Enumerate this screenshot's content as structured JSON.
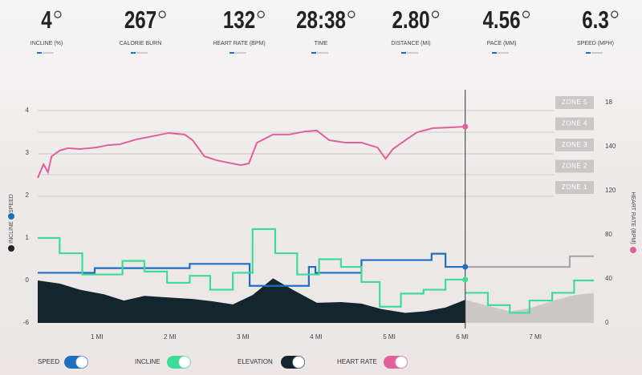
{
  "stats": [
    {
      "value": "4",
      "label": "INCLINE (%)"
    },
    {
      "value": "267",
      "label": "CALORIE BURN"
    },
    {
      "value": "132",
      "label": "HEART RATE (BPM)"
    },
    {
      "value": "28:38",
      "label": "TIME"
    },
    {
      "value": "2.80",
      "label": "DISTANCE (MI)"
    },
    {
      "value": "4.56",
      "label": "PACE (MM)"
    },
    {
      "value": "6.3",
      "label": "SPEED (MPH)"
    }
  ],
  "chart_data": {
    "type": "line",
    "ylabel_incline": "INCLINE",
    "ylabel_speed": "SPEED",
    "y2label": "HEART RATE (BPM)",
    "y2_top_label": "18",
    "zones": [
      "ZONE 5",
      "ZONE 4",
      "ZONE 3",
      "ZONE 2",
      "ZONE 1"
    ],
    "xlim": [
      0.19,
      7.8
    ],
    "xticks": [
      {
        "value": 1,
        "label": "1 MI"
      },
      {
        "value": 2,
        "label": "2 MI"
      },
      {
        "value": 3,
        "label": "3 MI"
      },
      {
        "value": 4,
        "label": "4 MI"
      },
      {
        "value": 5,
        "label": "5 MI"
      },
      {
        "value": 6,
        "label": "6 MI"
      },
      {
        "value": 7,
        "label": "7 MI"
      }
    ],
    "yticks": [
      4,
      3,
      2,
      1,
      0,
      -6
    ],
    "y2ticks": [
      140,
      120,
      80,
      40,
      0
    ],
    "series": [
      {
        "name": "SPEED",
        "color": "#1f6fbf",
        "planned_color": "#a8a8a8",
        "style": "step",
        "axis": "y",
        "x": [
          0.19,
          0.97,
          2.27,
          3.09,
          3.9,
          3.99,
          4.62,
          5.58,
          5.77,
          6.04
        ],
        "values": [
          0.18,
          0.29,
          0.39,
          -0.76,
          0.32,
          0.18,
          0.48,
          0.63,
          0.32,
          0.32
        ],
        "planned_x": [
          6.04,
          7.47,
          7.8
        ],
        "planned_values": [
          0.32,
          0.57,
          0.57
        ]
      },
      {
        "name": "INCLINE",
        "color": "#3ddc97",
        "planned_color": "#3ddc97",
        "style": "step",
        "axis": "y",
        "x": [
          0.19,
          0.49,
          0.8,
          1.35,
          1.65,
          1.96,
          2.27,
          2.55,
          2.86,
          3.13,
          3.44,
          3.74,
          4.04,
          4.34,
          4.62,
          4.87,
          5.16,
          5.47,
          5.77,
          6.04
        ],
        "values": [
          1.0,
          0.64,
          0.14,
          0.46,
          0.21,
          -0.33,
          0.11,
          -1.31,
          0.18,
          1.21,
          0.64,
          0.14,
          0.5,
          0.32,
          -0.22,
          -3.71,
          -1.85,
          -1.31,
          0.02,
          0.02
        ],
        "planned_x": [
          6.04,
          6.35,
          6.65,
          6.92,
          7.23,
          7.53,
          7.8
        ],
        "planned_values": [
          -1.75,
          -3.49,
          -4.58,
          -2.84,
          -1.75,
          0,
          0
        ]
      },
      {
        "name": "ELEVATION",
        "color": "#13262d",
        "planned_color": "#cdc8c8",
        "style": "area",
        "axis": "y",
        "x": [
          0.19,
          0.49,
          0.77,
          1.1,
          1.37,
          1.65,
          1.98,
          2.31,
          2.58,
          2.86,
          3.13,
          3.41,
          3.68,
          4.01,
          4.34,
          4.62,
          4.89,
          5.22,
          5.49,
          5.77,
          6.04
        ],
        "values": [
          0,
          -0.44,
          -1.31,
          -1.96,
          -2.84,
          -2.18,
          -2.4,
          -2.62,
          -2.95,
          -3.38,
          -2.07,
          0.05,
          -1.31,
          -3.16,
          -3.05,
          -3.27,
          -4.04,
          -4.58,
          -4.36,
          -3.82,
          -2.73
        ],
        "planned_x": [
          6.04,
          6.32,
          6.65,
          6.92,
          7.25,
          7.53,
          7.8
        ],
        "planned_values": [
          -2.73,
          -3.49,
          -4.36,
          -3.93,
          -2.84,
          -2.07,
          -1.75
        ]
      },
      {
        "name": "HEART RATE",
        "color": "#e0609a",
        "style": "line",
        "axis": "y2",
        "x": [
          0.19,
          0.27,
          0.33,
          0.38,
          0.49,
          0.6,
          0.77,
          0.99,
          1.15,
          1.32,
          1.54,
          1.76,
          1.98,
          2.2,
          2.31,
          2.47,
          2.64,
          2.8,
          2.97,
          3.08,
          3.19,
          3.41,
          3.63,
          3.85,
          4.01,
          4.18,
          4.4,
          4.62,
          4.84,
          4.95,
          5.05,
          5.22,
          5.38,
          5.6,
          5.82,
          6.04
        ],
        "values": [
          125.8,
          132,
          128.4,
          135.6,
          138.2,
          139.3,
          138.9,
          139.6,
          140.7,
          141.1,
          143.3,
          144.7,
          146.2,
          145.5,
          142.9,
          135.6,
          133.8,
          132.7,
          131.6,
          132.4,
          141.8,
          145.5,
          145.5,
          146.9,
          147.3,
          142.9,
          141.8,
          141.8,
          139.6,
          134.5,
          138.9,
          142.9,
          146.5,
          148.4,
          148.7,
          149.1
        ]
      }
    ]
  }
}
